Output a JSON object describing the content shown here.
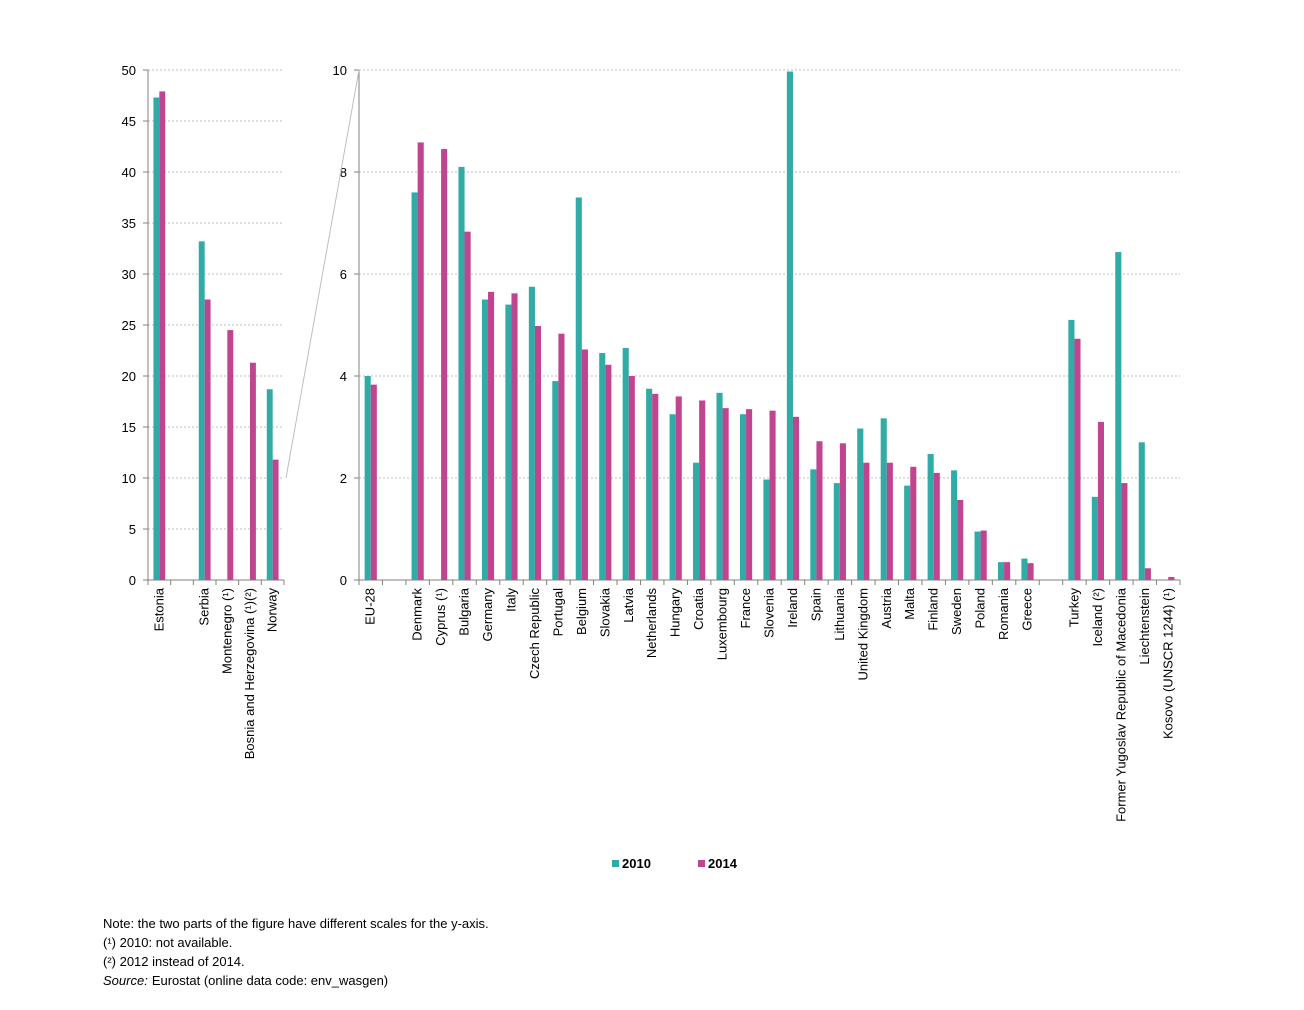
{
  "colors": {
    "series_2010": "#30ABA6",
    "series_2014": "#C0448F",
    "grid": "#BFBFBF",
    "axis": "#808080"
  },
  "legend": [
    {
      "label": "2010",
      "color": "#30ABA6"
    },
    {
      "label": "2014",
      "color": "#C0448F"
    }
  ],
  "chart_data": [
    {
      "type": "bar",
      "ylim": [
        0,
        50
      ],
      "yticks": [
        "0",
        "5",
        "10",
        "15",
        "20",
        "25",
        "30",
        "35",
        "40",
        "45",
        "50"
      ],
      "grid": true,
      "categories": [
        "Estonia",
        "",
        "Serbia",
        "Montenegro (¹)",
        "Bosnia and Herzegovina (¹)(²)",
        "Norway"
      ],
      "series": [
        {
          "name": "2010",
          "values": [
            47.3,
            null,
            33.2,
            null,
            null,
            18.7
          ]
        },
        {
          "name": "2014",
          "values": [
            47.9,
            null,
            27.5,
            24.5,
            21.3,
            11.8
          ]
        }
      ]
    },
    {
      "type": "bar",
      "ylim": [
        0,
        10
      ],
      "yticks": [
        "0",
        "2",
        "4",
        "6",
        "8",
        "10"
      ],
      "grid": true,
      "categories": [
        "EU-28",
        "",
        "Denmark",
        "Cyprus (¹)",
        "Bulgaria",
        "Germany",
        "Italy",
        "Czech Republic",
        "Portugal",
        "Belgium",
        "Slovakia",
        "Latvia",
        "Netherlands",
        "Hungary",
        "Croatia",
        "Luxembourg",
        "France",
        "Slovenia",
        "Ireland",
        "Spain",
        "Lithuania",
        "United Kingdom",
        "Austria",
        "Malta",
        "Finland",
        "Sweden",
        "Poland",
        "Romania",
        "Greece",
        "",
        "Turkey",
        "Iceland (²)",
        "Former Yugoslav Republic of Macedonia",
        "Liechtenstein",
        "Kosovo (UNSCR 1244) (¹)"
      ],
      "series": [
        {
          "name": "2010",
          "values": [
            4.0,
            null,
            7.6,
            null,
            8.1,
            5.5,
            5.4,
            5.75,
            3.9,
            7.5,
            4.45,
            4.55,
            3.75,
            3.25,
            2.3,
            3.67,
            3.25,
            1.97,
            9.97,
            2.17,
            1.9,
            2.97,
            3.17,
            1.85,
            2.47,
            2.15,
            0.95,
            0.35,
            0.42,
            null,
            5.1,
            1.63,
            6.43,
            2.7,
            null
          ]
        },
        {
          "name": "2014",
          "values": [
            3.83,
            null,
            8.58,
            8.45,
            6.83,
            5.65,
            5.62,
            4.98,
            4.83,
            4.52,
            4.22,
            4.0,
            3.65,
            3.6,
            3.52,
            3.37,
            3.35,
            3.32,
            3.2,
            2.72,
            2.68,
            2.3,
            2.3,
            2.22,
            2.1,
            1.57,
            0.97,
            0.35,
            0.33,
            null,
            4.73,
            3.1,
            1.9,
            0.23,
            0.06
          ]
        }
      ]
    }
  ],
  "notes": {
    "line1": "Note: the two parts of the figure have different scales for the y-axis.",
    "line2": "(¹) 2010: not available.",
    "line3": "(²) 2012 instead of 2014.",
    "source_label": "Source:",
    "source_text": "Eurostat (online data code: env_wasgen)"
  }
}
